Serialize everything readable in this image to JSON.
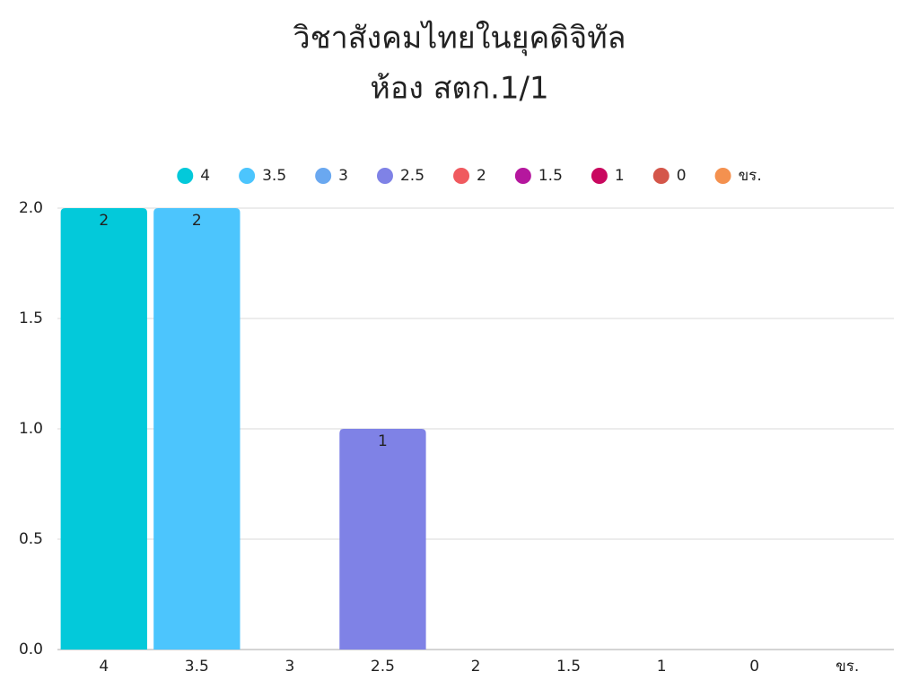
{
  "chart_data": {
    "type": "bar",
    "title": [
      "วิชาสังคมไทยในยุคดิจิทัล",
      "ห้อง สตก.1/1"
    ],
    "categories": [
      "4",
      "3.5",
      "3",
      "2.5",
      "2",
      "1.5",
      "1",
      "0",
      "ขร."
    ],
    "values": [
      2,
      2,
      0,
      1,
      0,
      0,
      0,
      0,
      0
    ],
    "colors": [
      "#03c9da",
      "#4cc5fd",
      "#6aa8f0",
      "#7f82e6",
      "#f05a5f",
      "#b5179e",
      "#c9085f",
      "#d4564a",
      "#f4914f"
    ],
    "ylim": [
      0,
      2
    ],
    "yticks": [
      {
        "value": 0,
        "label": "0.0"
      },
      {
        "value": 0.5,
        "label": "0.5"
      },
      {
        "value": 1,
        "label": "1.0"
      },
      {
        "value": 1.5,
        "label": "1.5"
      },
      {
        "value": 2,
        "label": "2.0"
      }
    ],
    "grid": true,
    "legend": "top"
  }
}
